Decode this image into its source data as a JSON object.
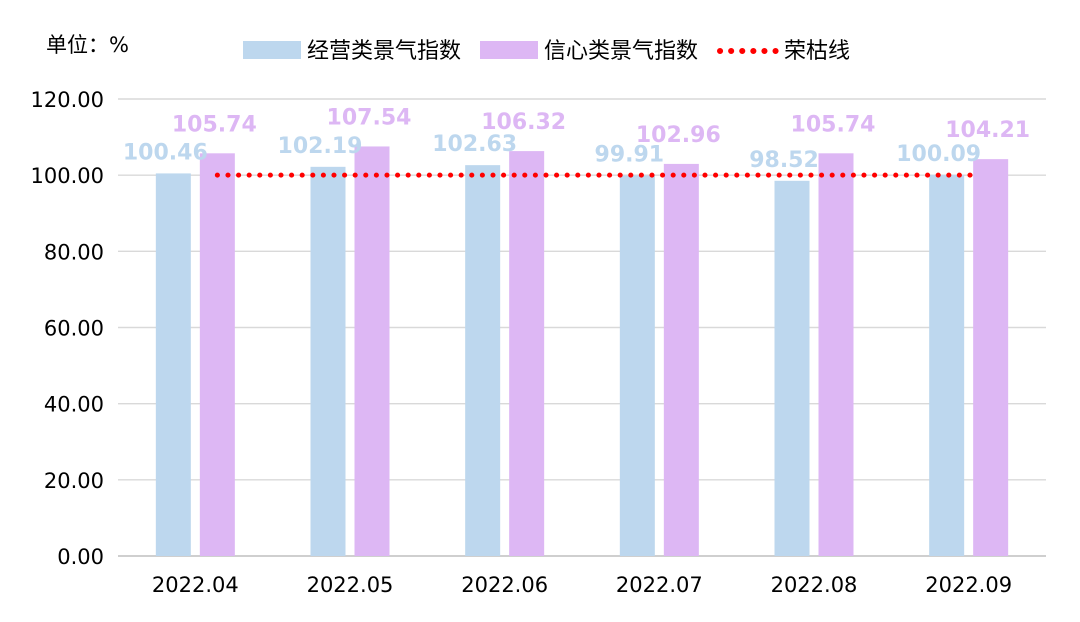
{
  "chart_data": {
    "type": "bar",
    "unit_label": "单位：%",
    "categories": [
      "2022.04",
      "2022.05",
      "2022.06",
      "2022.07",
      "2022.08",
      "2022.09"
    ],
    "series": [
      {
        "name": "经营类景气指数",
        "color": "#bdd7ee",
        "values": [
          100.46,
          102.19,
          102.63,
          99.91,
          98.52,
          100.09
        ],
        "labels": [
          "100.46",
          "102.19",
          "102.63",
          "99.91",
          "98.52",
          "100.09"
        ]
      },
      {
        "name": "信心类景气指数",
        "color": "#ddb7f4",
        "values": [
          105.74,
          107.54,
          106.32,
          102.96,
          105.74,
          104.21
        ],
        "labels": [
          "105.74",
          "107.54",
          "106.32",
          "102.96",
          "105.74",
          "104.21"
        ]
      }
    ],
    "reference_line": {
      "name": "荣枯线",
      "value": 100,
      "color": "#ff0000",
      "style": "dotted"
    },
    "y_ticks": [
      "0.00",
      "20.00",
      "40.00",
      "60.00",
      "80.00",
      "100.00",
      "120.00"
    ],
    "ylim": [
      0,
      120
    ],
    "grid": true,
    "legend_position": "top-center"
  }
}
